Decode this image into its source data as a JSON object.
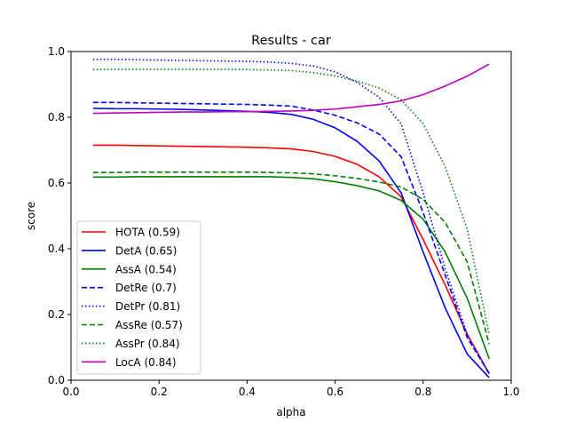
{
  "chart_data": {
    "type": "line",
    "title": "Results - car",
    "xlabel": "alpha",
    "ylabel": "score",
    "xlim": [
      0.0,
      1.0
    ],
    "ylim": [
      0.0,
      1.0
    ],
    "xticks": [
      "0.0",
      "0.2",
      "0.4",
      "0.6",
      "0.8",
      "1.0"
    ],
    "yticks": [
      "0.0",
      "0.2",
      "0.4",
      "0.6",
      "0.8",
      "1.0"
    ],
    "grid": false,
    "legend_position": "lower-left",
    "x": [
      0.05,
      0.1,
      0.15,
      0.2,
      0.25,
      0.3,
      0.35,
      0.4,
      0.45,
      0.5,
      0.55,
      0.6,
      0.65,
      0.7,
      0.75,
      0.8,
      0.85,
      0.9,
      0.95
    ],
    "series": [
      {
        "name": "HOTA (0.59)",
        "color": "#ff0000",
        "dash": "solid",
        "values": [
          0.715,
          0.715,
          0.714,
          0.713,
          0.712,
          0.711,
          0.71,
          0.709,
          0.707,
          0.704,
          0.696,
          0.681,
          0.657,
          0.619,
          0.558,
          0.428,
          0.29,
          0.14,
          0.02
        ]
      },
      {
        "name": "DetA (0.65)",
        "color": "#0000ff",
        "dash": "solid",
        "values": [
          0.827,
          0.826,
          0.826,
          0.825,
          0.824,
          0.822,
          0.82,
          0.818,
          0.815,
          0.809,
          0.794,
          0.768,
          0.727,
          0.667,
          0.57,
          0.39,
          0.22,
          0.08,
          0.008
        ]
      },
      {
        "name": "AssA (0.54)",
        "color": "#008000",
        "dash": "solid",
        "values": [
          0.618,
          0.618,
          0.619,
          0.619,
          0.619,
          0.619,
          0.619,
          0.619,
          0.619,
          0.617,
          0.613,
          0.604,
          0.592,
          0.576,
          0.547,
          0.49,
          0.39,
          0.25,
          0.065
        ]
      },
      {
        "name": "DetRe (0.7)",
        "color": "#0000ff",
        "dash": "dashed",
        "values": [
          0.845,
          0.845,
          0.844,
          0.843,
          0.842,
          0.841,
          0.84,
          0.839,
          0.837,
          0.834,
          0.822,
          0.806,
          0.783,
          0.749,
          0.68,
          0.51,
          0.32,
          0.13,
          0.02
        ]
      },
      {
        "name": "DetPr (0.81)",
        "color": "#0000ff",
        "dash": "dotted",
        "values": [
          0.976,
          0.976,
          0.975,
          0.974,
          0.973,
          0.972,
          0.971,
          0.97,
          0.968,
          0.964,
          0.956,
          0.938,
          0.906,
          0.861,
          0.78,
          0.57,
          0.34,
          0.14,
          0.02
        ]
      },
      {
        "name": "AssRe (0.57)",
        "color": "#008000",
        "dash": "dashed",
        "values": [
          0.632,
          0.632,
          0.633,
          0.633,
          0.633,
          0.633,
          0.633,
          0.633,
          0.632,
          0.631,
          0.628,
          0.622,
          0.614,
          0.603,
          0.588,
          0.55,
          0.48,
          0.36,
          0.11
        ]
      },
      {
        "name": "AssPr (0.84)",
        "color": "#008000",
        "dash": "dotted",
        "values": [
          0.945,
          0.946,
          0.946,
          0.946,
          0.946,
          0.946,
          0.946,
          0.945,
          0.944,
          0.942,
          0.936,
          0.926,
          0.91,
          0.889,
          0.853,
          0.78,
          0.65,
          0.46,
          0.14
        ]
      },
      {
        "name": "LocA (0.84)",
        "color": "#bf00bf",
        "dash": "solid",
        "values": [
          0.812,
          0.813,
          0.814,
          0.815,
          0.816,
          0.816,
          0.817,
          0.817,
          0.818,
          0.819,
          0.821,
          0.825,
          0.832,
          0.839,
          0.85,
          0.869,
          0.895,
          0.925,
          0.962
        ]
      }
    ]
  }
}
